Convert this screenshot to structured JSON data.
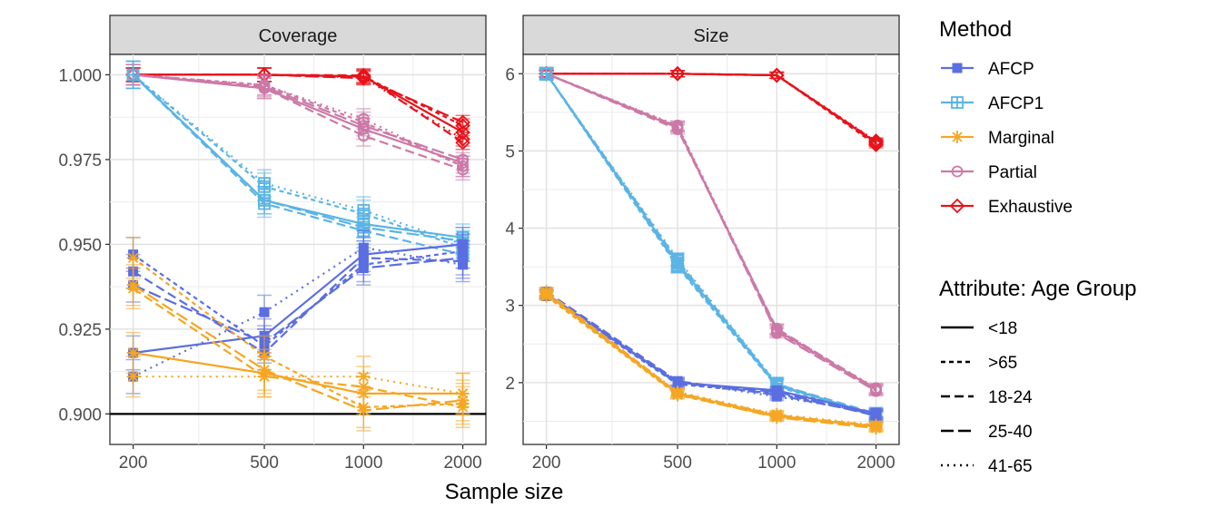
{
  "chart_data": {
    "type": "line",
    "x_axis_title": "Sample size",
    "x_values": [
      200,
      500,
      1000,
      2000
    ],
    "x_tick_labels": [
      "200",
      "500",
      "1000",
      "2000"
    ],
    "x_scale": "log",
    "colors": {
      "AFCP": "#5b6ee1",
      "AFCP1": "#5ab4e5",
      "Marginal": "#f5a623",
      "Partial": "#cc79a7",
      "Exhaustive": "#e8121a"
    },
    "legend_method": {
      "title": "Method",
      "items": [
        "AFCP",
        "AFCP1",
        "Marginal",
        "Partial",
        "Exhaustive"
      ]
    },
    "legend_attribute": {
      "title": "Attribute: Age Group",
      "items": [
        {
          "label": "<18",
          "dash": "solid"
        },
        {
          "label": ">65",
          "dash": "short"
        },
        {
          "label": "18-24",
          "dash": "long"
        },
        {
          "label": "25-40",
          "dash": "longer"
        },
        {
          "label": "41-65",
          "dash": "dotted"
        }
      ]
    },
    "panels": [
      {
        "title": "Coverage",
        "ylim": [
          0.891,
          1.006
        ],
        "yticks": [
          0.9,
          0.925,
          0.95,
          0.975,
          1.0
        ],
        "ytick_labels": [
          "0.900",
          "0.925",
          "0.950",
          "0.975",
          "1.000"
        ],
        "hline": 0.9,
        "series": [
          {
            "method": "Exhaustive",
            "group": "<18",
            "values": [
              1.0,
              1.0,
              0.9995,
              0.983
            ],
            "err": 0.002
          },
          {
            "method": "Exhaustive",
            "group": ">65",
            "values": [
              1.0,
              1.0,
              0.9995,
              0.985
            ],
            "err": 0.002
          },
          {
            "method": "Exhaustive",
            "group": "18-24",
            "values": [
              1.0,
              1.0,
              0.9998,
              0.98
            ],
            "err": 0.002
          },
          {
            "method": "Exhaustive",
            "group": "25-40",
            "values": [
              1.0,
              1.0,
              0.999,
              0.986
            ],
            "err": 0.002
          },
          {
            "method": "Exhaustive",
            "group": "41-65",
            "values": [
              1.0,
              1.0,
              0.9992,
              0.981
            ],
            "err": 0.002
          },
          {
            "method": "Partial",
            "group": "<18",
            "values": [
              1.0,
              0.996,
              0.984,
              0.974
            ],
            "err": 0.003
          },
          {
            "method": "Partial",
            "group": ">65",
            "values": [
              1.0,
              0.997,
              0.986,
              0.973
            ],
            "err": 0.003
          },
          {
            "method": "Partial",
            "group": "18-24",
            "values": [
              1.0,
              0.996,
              0.982,
              0.972
            ],
            "err": 0.003
          },
          {
            "method": "Partial",
            "group": "25-40",
            "values": [
              1.0,
              0.9965,
              0.985,
              0.975
            ],
            "err": 0.003
          },
          {
            "method": "Partial",
            "group": "41-65",
            "values": [
              1.0,
              0.997,
              0.987,
              0.973
            ],
            "err": 0.003
          },
          {
            "method": "AFCP1",
            "group": "<18",
            "values": [
              1.0,
              0.963,
              0.956,
              0.952
            ],
            "err": 0.004
          },
          {
            "method": "AFCP1",
            "group": ">65",
            "values": [
              1.0,
              0.967,
              0.959,
              0.949
            ],
            "err": 0.004
          },
          {
            "method": "AFCP1",
            "group": "18-24",
            "values": [
              1.0,
              0.962,
              0.954,
              0.947
            ],
            "err": 0.004
          },
          {
            "method": "AFCP1",
            "group": "25-40",
            "values": [
              1.0,
              0.963,
              0.955,
              0.951
            ],
            "err": 0.004
          },
          {
            "method": "AFCP1",
            "group": "41-65",
            "values": [
              1.0,
              0.968,
              0.96,
              0.95
            ],
            "err": 0.004
          },
          {
            "method": "AFCP",
            "group": "<18",
            "values": [
              0.918,
              0.923,
              0.947,
              0.95
            ],
            "err": 0.005
          },
          {
            "method": "AFCP",
            "group": ">65",
            "values": [
              0.947,
              0.92,
              0.944,
              0.948
            ],
            "err": 0.005
          },
          {
            "method": "AFCP",
            "group": "18-24",
            "values": [
              0.942,
              0.918,
              0.946,
              0.945
            ],
            "err": 0.005
          },
          {
            "method": "AFCP",
            "group": "25-40",
            "values": [
              0.938,
              0.921,
              0.943,
              0.946
            ],
            "err": 0.005
          },
          {
            "method": "AFCP",
            "group": "41-65",
            "values": [
              0.911,
              0.93,
              0.949,
              0.944
            ],
            "err": 0.005
          },
          {
            "method": "Marginal",
            "group": "<18",
            "values": [
              0.918,
              0.912,
              0.906,
              0.906
            ],
            "err": 0.006
          },
          {
            "method": "Marginal",
            "group": ">65",
            "values": [
              0.946,
              0.917,
              0.902,
              0.903
            ],
            "err": 0.006
          },
          {
            "method": "Marginal",
            "group": "18-24",
            "values": [
              0.937,
              0.911,
              0.908,
              0.902
            ],
            "err": 0.006
          },
          {
            "method": "Marginal",
            "group": "25-40",
            "values": [
              0.938,
              0.913,
              0.901,
              0.904
            ],
            "err": 0.006
          },
          {
            "method": "Marginal",
            "group": "41-65",
            "values": [
              0.911,
              0.911,
              0.911,
              0.906
            ],
            "err": 0.006
          }
        ]
      },
      {
        "title": "Size",
        "ylim": [
          1.2,
          6.25
        ],
        "yticks": [
          2,
          3,
          4,
          5,
          6
        ],
        "ytick_labels": [
          "2",
          "3",
          "4",
          "5",
          "6"
        ],
        "series": [
          {
            "method": "Exhaustive",
            "group": "<18",
            "values": [
              6.0,
              6.0,
              5.98,
              5.11
            ],
            "err": 0.04
          },
          {
            "method": "Exhaustive",
            "group": ">65",
            "values": [
              6.0,
              6.0,
              5.98,
              5.08
            ],
            "err": 0.04
          },
          {
            "method": "Exhaustive",
            "group": "18-24",
            "values": [
              6.0,
              6.0,
              5.98,
              5.12
            ],
            "err": 0.04
          },
          {
            "method": "Exhaustive",
            "group": "25-40",
            "values": [
              6.0,
              6.0,
              5.98,
              5.1
            ],
            "err": 0.04
          },
          {
            "method": "Exhaustive",
            "group": "41-65",
            "values": [
              6.0,
              6.0,
              5.98,
              5.13
            ],
            "err": 0.04
          },
          {
            "method": "Partial",
            "group": "<18",
            "values": [
              6.0,
              5.3,
              2.68,
              1.91
            ],
            "err": 0.06
          },
          {
            "method": "Partial",
            "group": ">65",
            "values": [
              6.0,
              5.32,
              2.66,
              1.9
            ],
            "err": 0.06
          },
          {
            "method": "Partial",
            "group": "18-24",
            "values": [
              6.0,
              5.28,
              2.7,
              1.92
            ],
            "err": 0.06
          },
          {
            "method": "Partial",
            "group": "25-40",
            "values": [
              6.0,
              5.31,
              2.64,
              1.89
            ],
            "err": 0.06
          },
          {
            "method": "Partial",
            "group": "41-65",
            "values": [
              6.0,
              5.33,
              2.69,
              1.93
            ],
            "err": 0.06
          },
          {
            "method": "AFCP1",
            "group": "<18",
            "values": [
              6.0,
              3.55,
              1.97,
              1.58
            ],
            "err": 0.08
          },
          {
            "method": "AFCP1",
            "group": ">65",
            "values": [
              6.0,
              3.5,
              1.95,
              1.57
            ],
            "err": 0.08
          },
          {
            "method": "AFCP1",
            "group": "18-24",
            "values": [
              6.0,
              3.58,
              1.98,
              1.6
            ],
            "err": 0.08
          },
          {
            "method": "AFCP1",
            "group": "25-40",
            "values": [
              6.0,
              3.52,
              1.96,
              1.59
            ],
            "err": 0.08
          },
          {
            "method": "AFCP1",
            "group": "41-65",
            "values": [
              6.0,
              3.6,
              1.99,
              1.56
            ],
            "err": 0.08
          },
          {
            "method": "AFCP",
            "group": "<18",
            "values": [
              3.15,
              2.0,
              1.9,
              1.6
            ],
            "err": 0.05
          },
          {
            "method": "AFCP",
            "group": ">65",
            "values": [
              3.12,
              1.98,
              1.86,
              1.58
            ],
            "err": 0.05
          },
          {
            "method": "AFCP",
            "group": "18-24",
            "values": [
              3.18,
              2.02,
              1.84,
              1.59
            ],
            "err": 0.05
          },
          {
            "method": "AFCP",
            "group": "25-40",
            "values": [
              3.14,
              1.99,
              1.88,
              1.57
            ],
            "err": 0.05
          },
          {
            "method": "AFCP",
            "group": "41-65",
            "values": [
              3.16,
              2.01,
              1.82,
              1.61
            ],
            "err": 0.05
          },
          {
            "method": "Marginal",
            "group": "<18",
            "values": [
              3.15,
              1.86,
              1.57,
              1.43
            ],
            "err": 0.05
          },
          {
            "method": "Marginal",
            "group": ">65",
            "values": [
              3.12,
              1.84,
              1.56,
              1.42
            ],
            "err": 0.05
          },
          {
            "method": "Marginal",
            "group": "18-24",
            "values": [
              3.18,
              1.87,
              1.58,
              1.44
            ],
            "err": 0.05
          },
          {
            "method": "Marginal",
            "group": "25-40",
            "values": [
              3.14,
              1.85,
              1.55,
              1.41
            ],
            "err": 0.05
          },
          {
            "method": "Marginal",
            "group": "41-65",
            "values": [
              3.16,
              1.88,
              1.59,
              1.45
            ],
            "err": 0.05
          }
        ]
      }
    ]
  }
}
